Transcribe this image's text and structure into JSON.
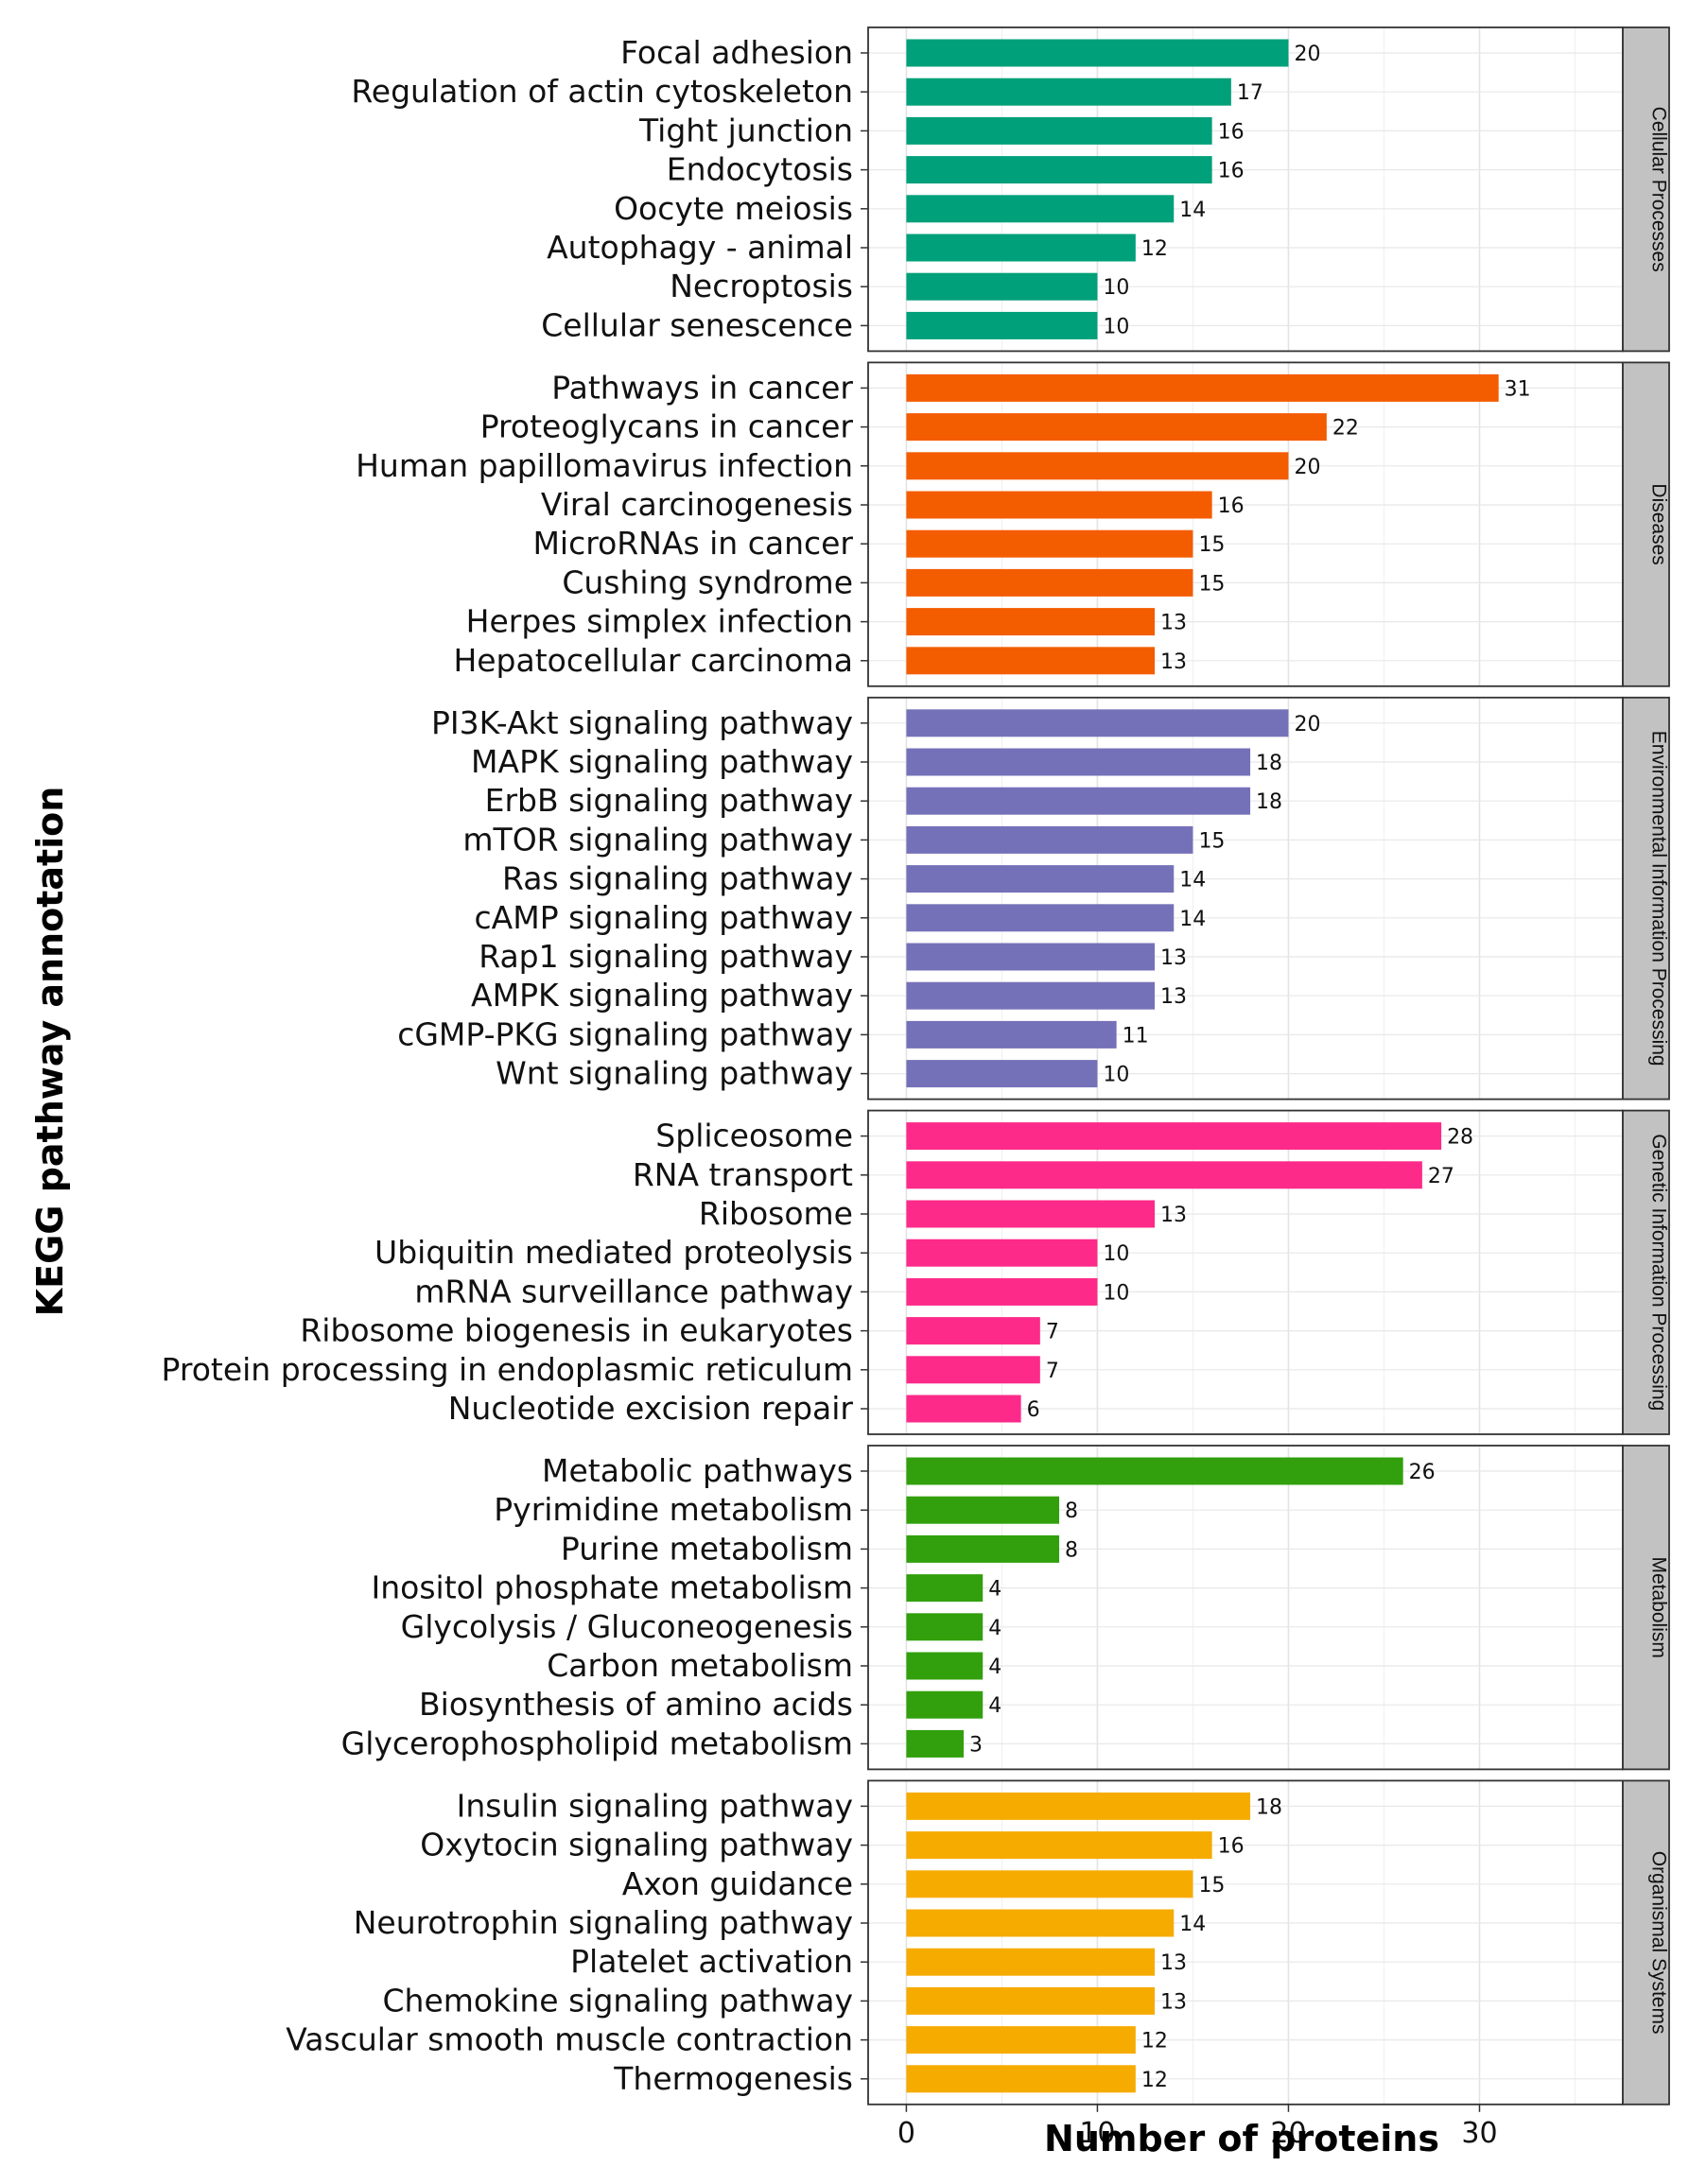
{
  "chart_data": {
    "type": "bar",
    "orientation": "horizontal",
    "xlabel": "Number of proteins",
    "ylabel": "KEGG pathway annotation",
    "xlim": [
      -2,
      37.5
    ],
    "xticks": [
      0,
      10,
      20,
      30
    ],
    "grid": true,
    "facets": [
      {
        "name": "Cellular Processes",
        "color": "#00a07a",
        "categories": [
          "Focal adhesion",
          "Regulation of actin cytoskeleton",
          "Tight junction",
          "Endocytosis",
          "Oocyte meiosis",
          "Autophagy - animal",
          "Necroptosis",
          "Cellular senescence"
        ],
        "values": [
          20,
          17,
          16,
          16,
          14,
          12,
          10,
          10
        ]
      },
      {
        "name": "Diseases",
        "color": "#f45c00",
        "categories": [
          "Pathways in cancer",
          "Proteoglycans in cancer",
          "Human papillomavirus infection",
          "Viral carcinogenesis",
          "MicroRNAs in cancer",
          "Cushing syndrome",
          "Herpes simplex infection",
          "Hepatocellular carcinoma"
        ],
        "values": [
          31,
          22,
          20,
          16,
          15,
          15,
          13,
          13
        ]
      },
      {
        "name": "Environmental Information Processing",
        "color": "#7571b8",
        "categories": [
          "PI3K-Akt signaling pathway",
          "MAPK signaling pathway",
          "ErbB signaling pathway",
          "mTOR signaling pathway",
          "Ras signaling pathway",
          "cAMP signaling pathway",
          "Rap1 signaling pathway",
          "AMPK signaling pathway",
          "cGMP-PKG signaling pathway",
          "Wnt signaling pathway"
        ],
        "values": [
          20,
          18,
          18,
          15,
          14,
          14,
          13,
          13,
          11,
          10
        ]
      },
      {
        "name": "Genetic Information Processing",
        "color": "#fd2a8a",
        "categories": [
          "Spliceosome",
          "RNA transport",
          "Ribosome",
          "Ubiquitin mediated proteolysis",
          "mRNA surveillance pathway",
          "Ribosome biogenesis in eukaryotes",
          "Protein processing in endoplasmic reticulum",
          "Nucleotide excision repair"
        ],
        "values": [
          28,
          27,
          13,
          10,
          10,
          7,
          7,
          6
        ]
      },
      {
        "name": "Metabolism",
        "color": "#31a00c",
        "categories": [
          "Metabolic pathways",
          "Pyrimidine metabolism",
          "Purine metabolism",
          "Inositol phosphate metabolism",
          "Glycolysis / Gluconeogenesis",
          "Carbon metabolism",
          "Biosynthesis of amino acids",
          "Glycerophospholipid metabolism"
        ],
        "values": [
          26,
          8,
          8,
          4,
          4,
          4,
          4,
          3
        ]
      },
      {
        "name": "Organismal Systems",
        "color": "#f6ab00",
        "categories": [
          "Insulin signaling pathway",
          "Oxytocin signaling pathway",
          "Axon guidance",
          "Neurotrophin signaling pathway",
          "Platelet activation",
          "Chemokine signaling pathway",
          "Vascular smooth muscle contraction",
          "Thermogenesis"
        ],
        "values": [
          18,
          16,
          15,
          14,
          13,
          13,
          12,
          12
        ]
      }
    ]
  }
}
